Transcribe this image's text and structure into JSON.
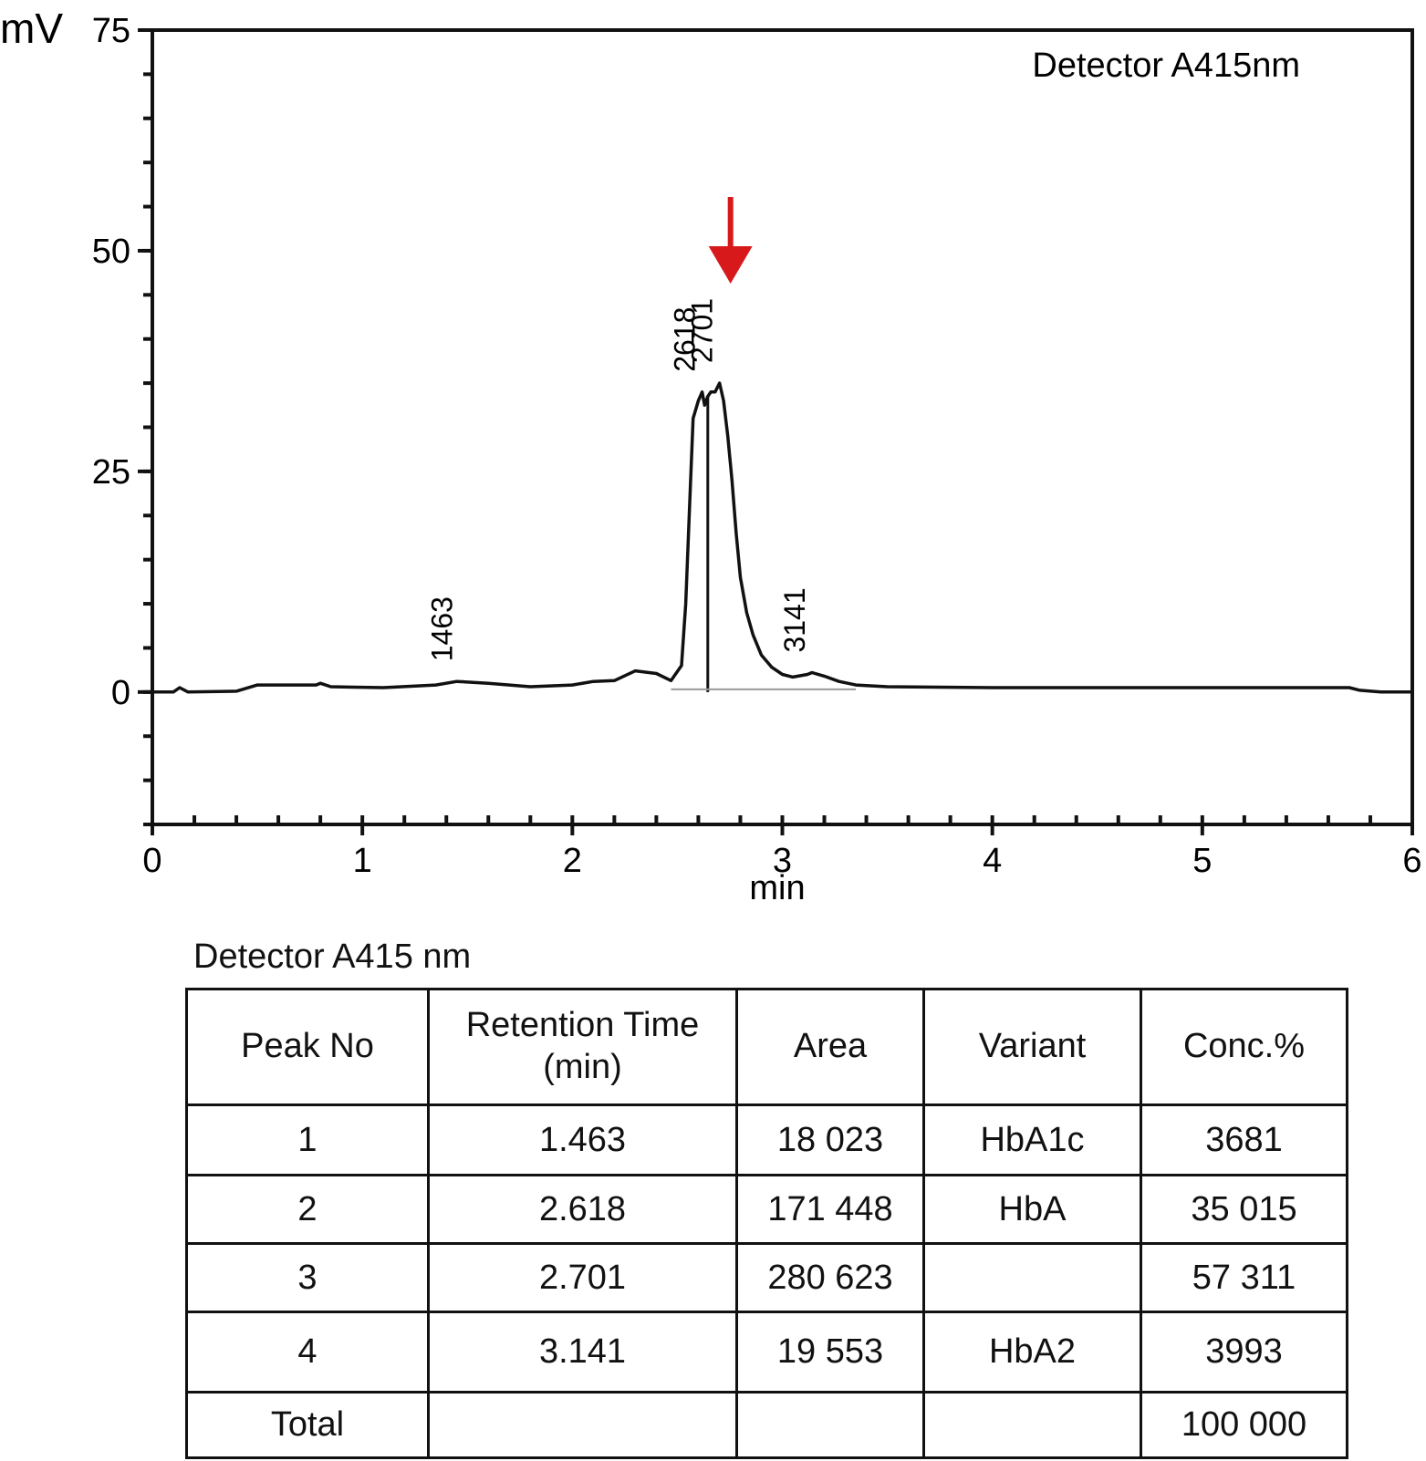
{
  "chart_data": {
    "type": "line",
    "title": "",
    "xlabel": "min",
    "ylabel": "mV",
    "xlim": [
      0,
      6
    ],
    "ylim": [
      -15,
      75
    ],
    "x_ticks": [
      0,
      1,
      2,
      3,
      4,
      5,
      6
    ],
    "y_ticks": [
      0,
      25,
      50,
      75
    ],
    "annotation": "Detector A415nm",
    "grid": false,
    "series": [
      {
        "values": [
          [
            0.0,
            0.0
          ],
          [
            0.1,
            0.0
          ],
          [
            0.13,
            0.5
          ],
          [
            0.17,
            0.0
          ],
          [
            0.4,
            0.1
          ],
          [
            0.5,
            0.8
          ],
          [
            0.78,
            0.8
          ],
          [
            0.8,
            1.0
          ],
          [
            0.85,
            0.6
          ],
          [
            1.1,
            0.5
          ],
          [
            1.35,
            0.8
          ],
          [
            1.45,
            1.2
          ],
          [
            1.6,
            1.0
          ],
          [
            1.8,
            0.6
          ],
          [
            2.0,
            0.8
          ],
          [
            2.1,
            1.2
          ],
          [
            2.2,
            1.3
          ],
          [
            2.3,
            2.4
          ],
          [
            2.4,
            2.1
          ],
          [
            2.47,
            1.3
          ],
          [
            2.52,
            3.0
          ],
          [
            2.54,
            10.0
          ],
          [
            2.56,
            22.0
          ],
          [
            2.575,
            31.0
          ],
          [
            2.6,
            33.0
          ],
          [
            2.618,
            34.0
          ],
          [
            2.63,
            32.5
          ],
          [
            2.645,
            33.5
          ],
          [
            2.66,
            34.0
          ],
          [
            2.68,
            34.0
          ],
          [
            2.701,
            35.0
          ],
          [
            2.72,
            33.0
          ],
          [
            2.74,
            29.0
          ],
          [
            2.76,
            24.0
          ],
          [
            2.78,
            18.0
          ],
          [
            2.8,
            13.0
          ],
          [
            2.83,
            9.0
          ],
          [
            2.86,
            6.5
          ],
          [
            2.9,
            4.2
          ],
          [
            2.95,
            2.8
          ],
          [
            3.0,
            2.0
          ],
          [
            3.05,
            1.7
          ],
          [
            3.12,
            2.0
          ],
          [
            3.141,
            2.2
          ],
          [
            3.2,
            1.8
          ],
          [
            3.27,
            1.2
          ],
          [
            3.35,
            0.8
          ],
          [
            3.5,
            0.6
          ],
          [
            4.0,
            0.5
          ],
          [
            5.0,
            0.5
          ],
          [
            5.7,
            0.5
          ],
          [
            5.75,
            0.2
          ],
          [
            5.85,
            0.0
          ],
          [
            6.0,
            0.0
          ]
        ]
      }
    ],
    "peak_labels": [
      {
        "text": "1463",
        "x": 1.463,
        "y": 1.2
      },
      {
        "text": "2618",
        "x": 2.618,
        "y": 34.0
      },
      {
        "text": "2701",
        "x": 2.701,
        "y": 35.0
      },
      {
        "text": "3141",
        "x": 3.141,
        "y": 2.2
      }
    ],
    "arrow_at_x": 2.701,
    "arrow_color": "#d7191c"
  },
  "table": {
    "caption": "Detector A415 nm",
    "headers": [
      "Peak No",
      "Retention Time\n(min)",
      "Area",
      "Variant",
      "Conc.%"
    ],
    "rows": [
      [
        "1",
        "1.463",
        "18 023",
        "HbA1c",
        "3681"
      ],
      [
        "2",
        "2.618",
        "171 448",
        "HbA",
        "35 015"
      ],
      [
        "3",
        "2.701",
        "280 623",
        "",
        "57 311"
      ],
      [
        "4",
        "3.141",
        "19 553",
        "HbA2",
        "3993"
      ],
      [
        "Total",
        "",
        "",
        "",
        "100 000"
      ]
    ]
  }
}
